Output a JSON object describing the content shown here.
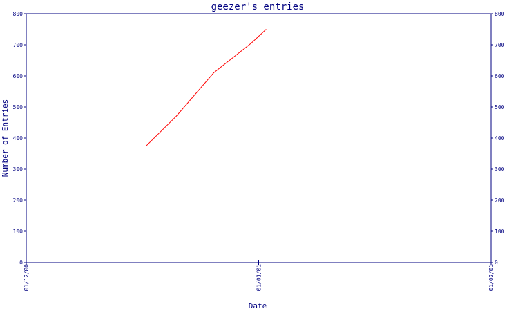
{
  "chart_data": {
    "type": "line",
    "title": "geezer's entries",
    "xlabel": "Date",
    "ylabel": "Number of Entries",
    "x_tick_labels": [
      "01/12/00",
      "01/01/01",
      "01/02/01"
    ],
    "y_ticks": [
      0,
      100,
      200,
      300,
      400,
      500,
      600,
      700,
      800
    ],
    "ylim": [
      0,
      800
    ],
    "xlim": [
      "2000-12-01",
      "2001-02-01"
    ],
    "grid": false,
    "series": [
      {
        "color": "#ff0000",
        "points": [
          {
            "x": "2000-12-17",
            "y": 375
          },
          {
            "x": "2000-12-21",
            "y": 470
          },
          {
            "x": "2000-12-26",
            "y": 610
          },
          {
            "x": "2000-12-31",
            "y": 705
          },
          {
            "x": "2001-01-02",
            "y": 750
          }
        ]
      }
    ]
  },
  "colors": {
    "axis": "#000080",
    "text": "#000080"
  }
}
